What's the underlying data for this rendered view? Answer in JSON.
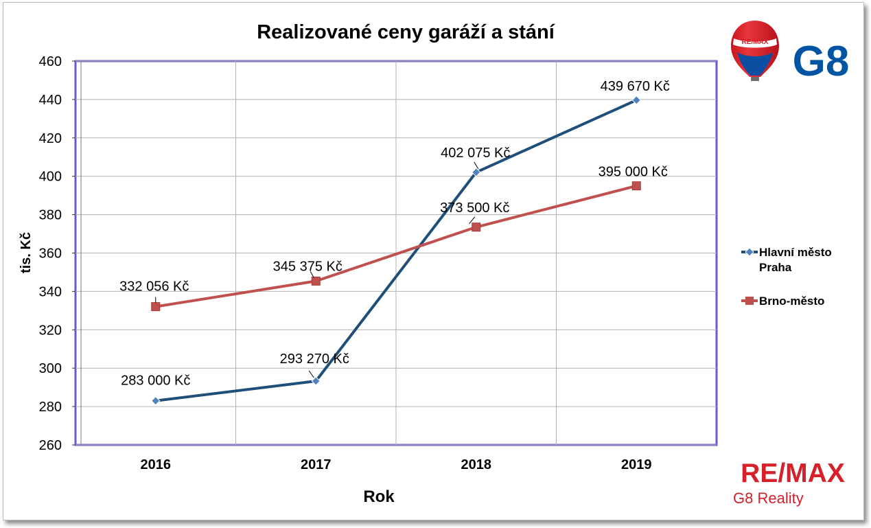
{
  "chart_data": {
    "type": "line",
    "title": "Realizované ceny garáží a stání",
    "xlabel": "Rok",
    "ylabel": "tis. Kč",
    "categories": [
      "2016",
      "2017",
      "2018",
      "2019"
    ],
    "ylim": [
      260,
      460
    ],
    "yticks": [
      "260",
      "280",
      "300",
      "320",
      "340",
      "360",
      "380",
      "400",
      "420",
      "440",
      "460"
    ],
    "grid": true,
    "legend_position": "right",
    "series": [
      {
        "name": "Hlavní město Praha",
        "name_lines": [
          "Hlavní město",
          "Praha"
        ],
        "color": "#1f4e79",
        "marker": "diamond",
        "values": [
          283.0,
          293.27,
          402.075,
          439.67
        ],
        "labels": [
          "283 000 Kč",
          "293 270 Kč",
          "402 075 Kč",
          "439 670 Kč"
        ]
      },
      {
        "name": "Brno-město",
        "name_lines": [
          "Brno-město"
        ],
        "color": "#c0504d",
        "marker": "square",
        "values": [
          332.056,
          345.375,
          373.5,
          395.0
        ],
        "labels": [
          "332 056 Kč",
          "345 375 Kč",
          "373 500 Kč",
          "395 000 Kč"
        ]
      }
    ]
  },
  "logos": {
    "balloon_text": "RE/MAX",
    "brand_mark": "G8",
    "brand_name": "RE/MAX",
    "brand_sub": "G8 Reality",
    "colors": {
      "remax_red": "#d6202a",
      "remax_blue": "#0054a4"
    }
  }
}
